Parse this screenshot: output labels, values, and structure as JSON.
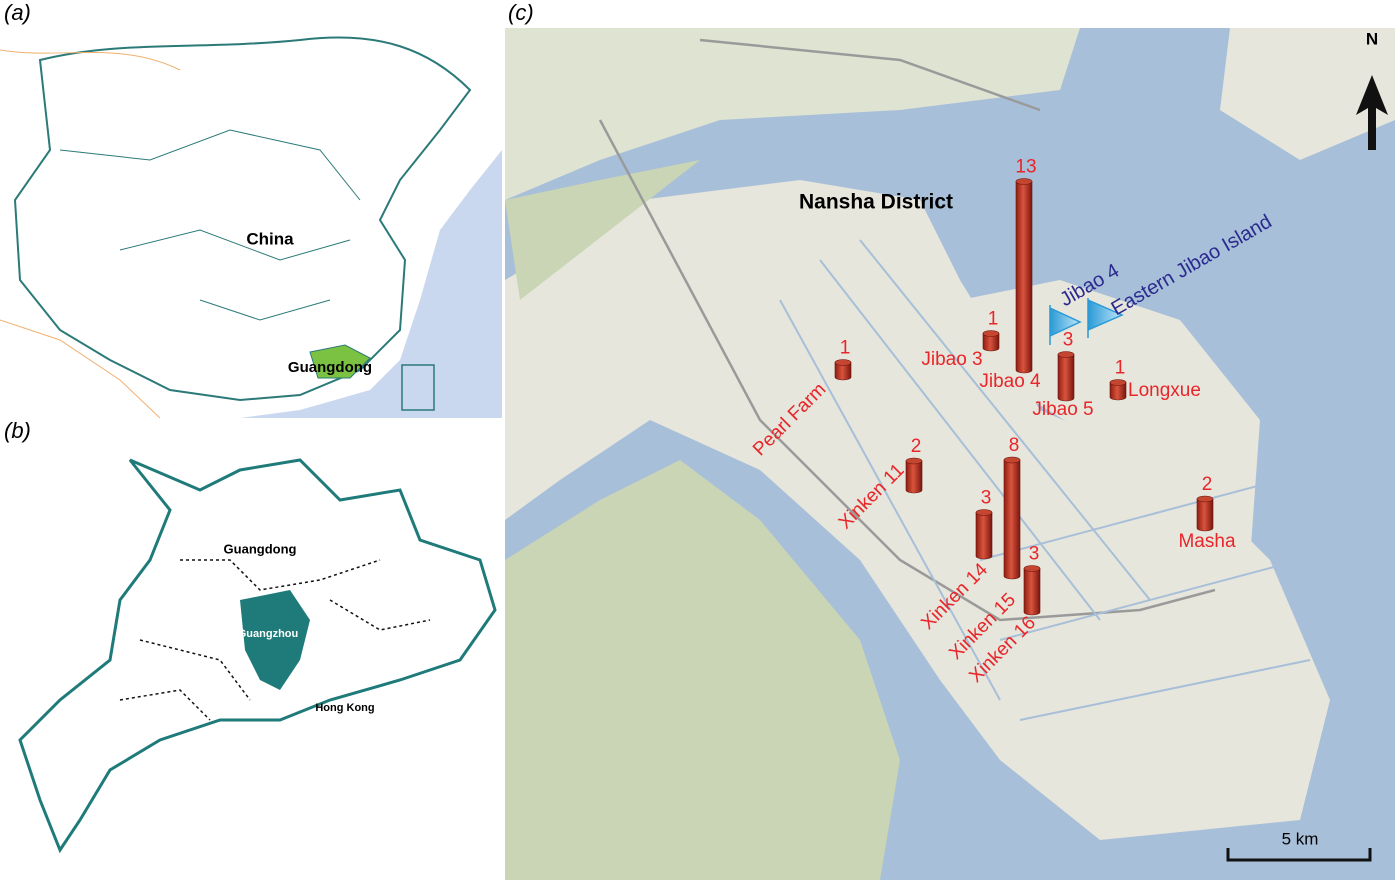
{
  "panel_a": {
    "label": "(a)",
    "places": [
      "China",
      "Guangdong"
    ]
  },
  "panel_b": {
    "label": "(b)",
    "places": [
      "Guangdong",
      "Guangzhou",
      "Hong Kong"
    ]
  },
  "panel_c": {
    "label": "(c)",
    "district": "Nansha District",
    "north": "N",
    "scale_bar": "5 km",
    "flags": [
      "Jibao 4",
      "Eastern Jibao Island"
    ],
    "sites": [
      {
        "name": "Pearl Farm",
        "count": 1
      },
      {
        "name": "Xinken 11",
        "count": 2
      },
      {
        "name": "Jibao 3",
        "count": 1
      },
      {
        "name": "Jibao 4",
        "count": 13
      },
      {
        "name": "Jibao 5",
        "count": 3
      },
      {
        "name": "Longxue",
        "count": 1
      },
      {
        "name": "Masha",
        "count": 2
      },
      {
        "name": "Xinken 14",
        "count": 3
      },
      {
        "name": "Xinken 15",
        "count": 8
      },
      {
        "name": "Xinken 16",
        "count": 3
      }
    ]
  }
}
